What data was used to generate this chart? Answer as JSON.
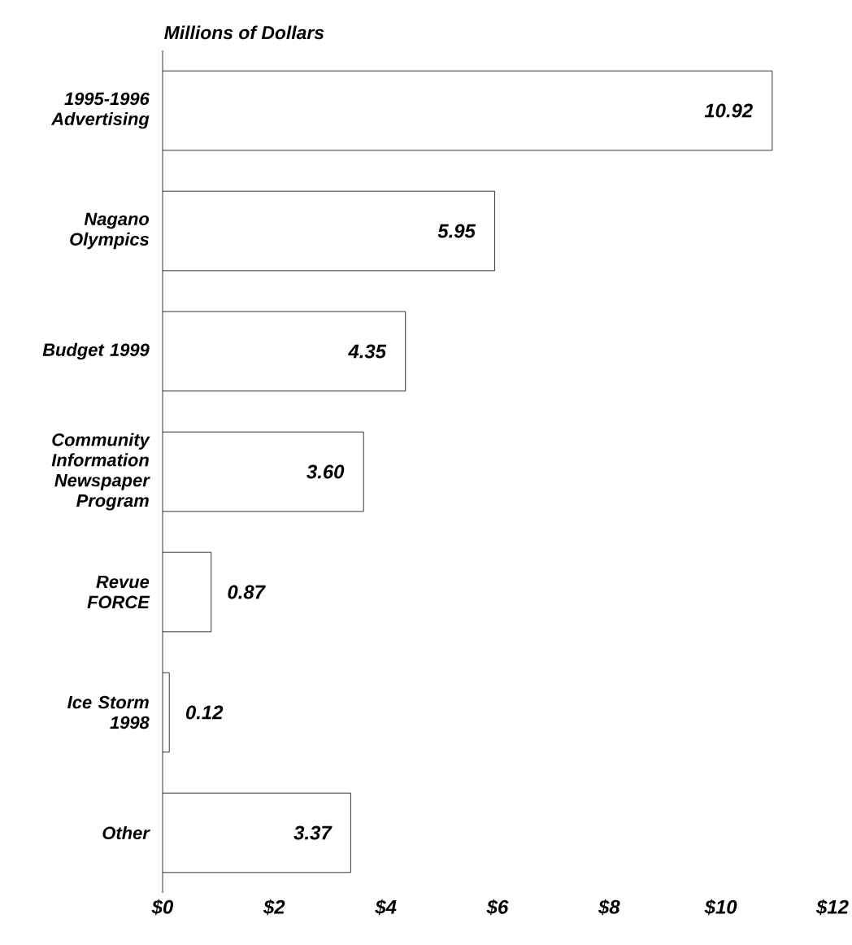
{
  "chart_data": {
    "type": "bar",
    "orientation": "horizontal",
    "title": "Millions of Dollars",
    "categories": [
      "1995-1996 Advertising",
      "Nagano Olympics",
      "Budget 1999",
      "Community Information Newspaper Program",
      "Revue FORCE",
      "Ice Storm 1998",
      "Other"
    ],
    "values": [
      10.92,
      5.95,
      4.35,
      3.6,
      0.87,
      0.12,
      3.37
    ],
    "value_labels": [
      "10.92",
      "5.95",
      "4.35",
      "3.60",
      "0.87",
      "0.12",
      "3.37"
    ],
    "color": "#ffffff",
    "xlim": [
      0,
      12
    ],
    "xticks": [
      {
        "value": 0,
        "label": "$0"
      },
      {
        "value": 2,
        "label": "$2"
      },
      {
        "value": 4,
        "label": "$4"
      },
      {
        "value": 6,
        "label": "$6"
      },
      {
        "value": 8,
        "label": "$8"
      },
      {
        "value": 10,
        "label": "$10"
      },
      {
        "value": 12,
        "label": "$12"
      }
    ],
    "grid": false
  }
}
